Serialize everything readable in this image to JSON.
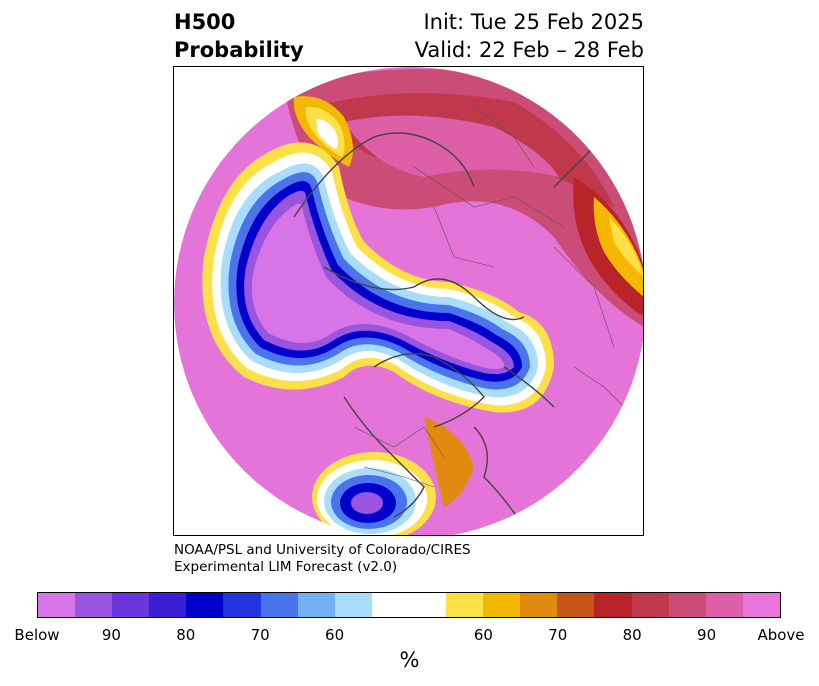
{
  "title": {
    "left_line1": "H500",
    "left_line2": "Probability",
    "right_line1": "Init: Tue 25 Feb 2025",
    "right_line2": "Valid: 22 Feb – 28 Feb"
  },
  "credit": {
    "line1": "NOAA/PSL and University of Colorado/CIRES",
    "line2": "Experimental LIM Forecast (v2.0)"
  },
  "colorbar": {
    "unit": "%",
    "tick_labels": [
      "Below",
      "90",
      "80",
      "70",
      "60",
      "60",
      "70",
      "80",
      "90",
      "Above"
    ],
    "colors": [
      "#d774e8",
      "#9a55e0",
      "#6b35dc",
      "#3a1ed4",
      "#0000cc",
      "#2234dc",
      "#4b74ec",
      "#72b0f4",
      "#aadcfc",
      "#ffffff",
      "#ffffff",
      "#fce047",
      "#f5b800",
      "#e08a10",
      "#c85518",
      "#b82428",
      "#c0384c",
      "#cc4c78",
      "#dc5fa8",
      "#e874dc"
    ]
  },
  "map": {
    "projection": "north-polar-stereographic",
    "features": [
      "coastlines",
      "country-borders",
      "state-borders"
    ]
  }
}
